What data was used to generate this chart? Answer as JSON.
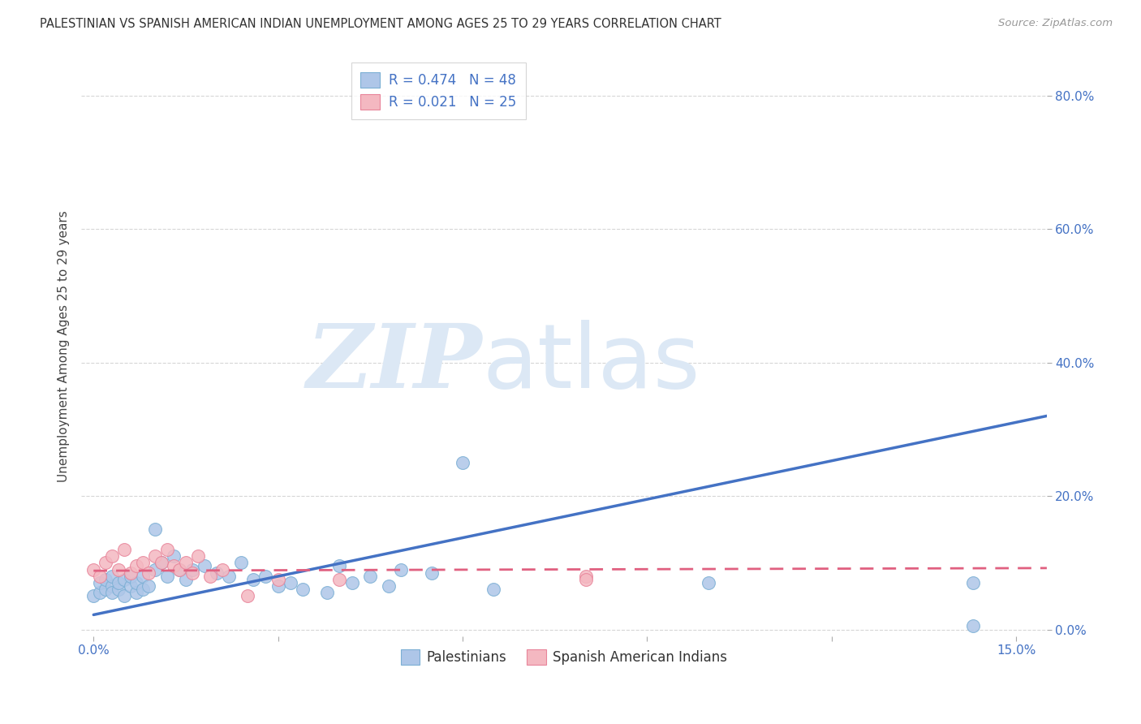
{
  "title": "PALESTINIAN VS SPANISH AMERICAN INDIAN UNEMPLOYMENT AMONG AGES 25 TO 29 YEARS CORRELATION CHART",
  "source": "Source: ZipAtlas.com",
  "ylabel": "Unemployment Among Ages 25 to 29 years",
  "xlim": [
    0.0,
    0.155
  ],
  "ylim": [
    -0.01,
    0.86
  ],
  "yticks": [
    0.0,
    0.2,
    0.4,
    0.6,
    0.8
  ],
  "ytick_labels": [
    "0.0%",
    "20.0%",
    "40.0%",
    "60.0%",
    "80.0%"
  ],
  "xticks": [
    0.0,
    0.03,
    0.06,
    0.09,
    0.12,
    0.15
  ],
  "xtick_labels": [
    "0.0%",
    "",
    "",
    "",
    "",
    "15.0%"
  ],
  "legend_entry1": "R = 0.474   N = 48",
  "legend_entry2": "R = 0.021   N = 25",
  "legend_color1": "#aec6e8",
  "legend_color2": "#f4b8c1",
  "scatter_color_blue": "#aec6e8",
  "scatter_color_pink": "#f4b8c1",
  "scatter_edge_blue": "#7bafd4",
  "scatter_edge_pink": "#e8849a",
  "trend_blue": "#4472c4",
  "trend_pink": "#e06080",
  "grid_color": "#cccccc",
  "background_color": "#ffffff",
  "watermark_color": "#dce8f5",
  "palestinian_x": [
    0.0,
    0.001,
    0.001,
    0.002,
    0.002,
    0.003,
    0.003,
    0.003,
    0.004,
    0.004,
    0.005,
    0.005,
    0.006,
    0.006,
    0.007,
    0.007,
    0.008,
    0.008,
    0.009,
    0.01,
    0.01,
    0.011,
    0.012,
    0.013,
    0.014,
    0.015,
    0.016,
    0.018,
    0.02,
    0.022,
    0.024,
    0.026,
    0.028,
    0.03,
    0.032,
    0.034,
    0.038,
    0.04,
    0.042,
    0.045,
    0.048,
    0.05,
    0.055,
    0.06,
    0.065,
    0.1,
    0.143,
    0.143
  ],
  "palestinian_y": [
    0.05,
    0.055,
    0.07,
    0.06,
    0.075,
    0.065,
    0.055,
    0.08,
    0.06,
    0.07,
    0.075,
    0.05,
    0.065,
    0.08,
    0.055,
    0.07,
    0.06,
    0.08,
    0.065,
    0.09,
    0.15,
    0.1,
    0.08,
    0.11,
    0.09,
    0.075,
    0.09,
    0.095,
    0.085,
    0.08,
    0.1,
    0.075,
    0.08,
    0.065,
    0.07,
    0.06,
    0.055,
    0.095,
    0.07,
    0.08,
    0.065,
    0.09,
    0.085,
    0.25,
    0.06,
    0.07,
    0.005,
    0.07
  ],
  "spanish_x": [
    0.0,
    0.001,
    0.002,
    0.003,
    0.004,
    0.005,
    0.006,
    0.007,
    0.008,
    0.009,
    0.01,
    0.011,
    0.012,
    0.013,
    0.014,
    0.015,
    0.016,
    0.017,
    0.019,
    0.021,
    0.025,
    0.03,
    0.04,
    0.08,
    0.08
  ],
  "spanish_y": [
    0.09,
    0.08,
    0.1,
    0.11,
    0.09,
    0.12,
    0.085,
    0.095,
    0.1,
    0.085,
    0.11,
    0.1,
    0.12,
    0.095,
    0.09,
    0.1,
    0.085,
    0.11,
    0.08,
    0.09,
    0.05,
    0.075,
    0.075,
    0.08,
    0.075
  ],
  "pal_trend_x": [
    0.0,
    0.155
  ],
  "pal_trend_y": [
    0.022,
    0.32
  ],
  "spa_trend_x": [
    0.0,
    0.155
  ],
  "spa_trend_y": [
    0.088,
    0.092
  ]
}
